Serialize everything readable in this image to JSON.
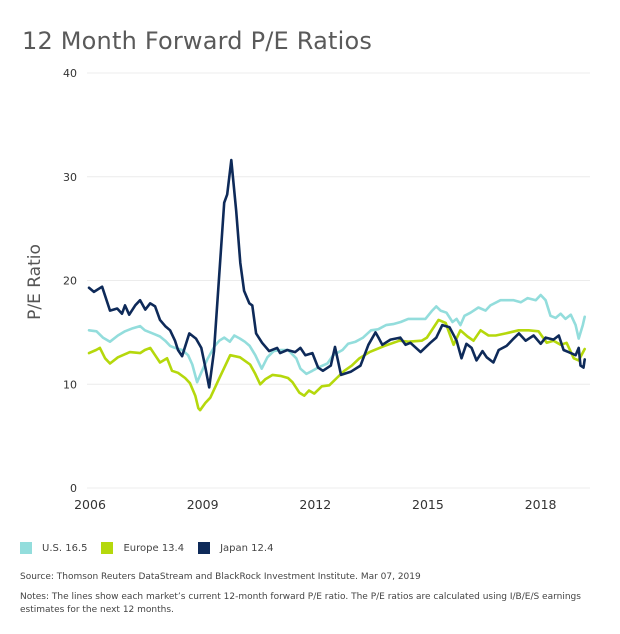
{
  "title": "12 Month Forward P/E Ratios",
  "legend": [
    {
      "label": "U.S. 16.5",
      "color": "#93dddc"
    },
    {
      "label": "Europe 13.4",
      "color": "#b5d80c"
    },
    {
      "label": "Japan 12.4",
      "color": "#0e2a59"
    }
  ],
  "source": "Source: Thomson Reuters DataStream and BlackRock Investment Institute. Mar 07, 2019",
  "notes": "Notes: The lines show each market’s current 12-month forward P/E ratio. The P/E ratios are calculated using I/B/E/S earnings estimates for the next 12 months.",
  "chart_data": {
    "type": "line",
    "title": "12 Month Forward P/E Ratios",
    "xlabel": "",
    "ylabel": "P/E Ratio",
    "xlim": [
      2006,
      2019.2
    ],
    "ylim": [
      0,
      40
    ],
    "yticks": [
      0,
      10,
      20,
      30,
      40
    ],
    "xticks": [
      2006,
      2009,
      2012,
      2015,
      2018
    ],
    "xtick_labels": [
      "2006",
      "2009",
      "2012",
      "2015",
      "2018"
    ],
    "ytick_labels": [
      "0",
      "10",
      "20",
      "30",
      "40"
    ],
    "grid": true,
    "legend_position": "bottom-left",
    "series": [
      {
        "name": "U.S.",
        "label": "U.S. 16.5",
        "color": "#93dddc",
        "points": [
          [
            2006.0,
            15.2
          ],
          [
            2006.2,
            15.1
          ],
          [
            2006.37,
            14.5
          ],
          [
            2006.56,
            14.1
          ],
          [
            2006.77,
            14.7
          ],
          [
            2006.96,
            15.1
          ],
          [
            2007.17,
            15.4
          ],
          [
            2007.36,
            15.6
          ],
          [
            2007.49,
            15.2
          ],
          [
            2007.63,
            15.0
          ],
          [
            2007.76,
            14.8
          ],
          [
            2007.89,
            14.6
          ],
          [
            2008.03,
            14.2
          ],
          [
            2008.16,
            13.7
          ],
          [
            2008.29,
            13.5
          ],
          [
            2008.48,
            13.3
          ],
          [
            2008.64,
            12.8
          ],
          [
            2008.75,
            11.9
          ],
          [
            2008.88,
            10.2
          ],
          [
            2009.0,
            11.2
          ],
          [
            2009.15,
            12.4
          ],
          [
            2009.35,
            13.7
          ],
          [
            2009.47,
            14.2
          ],
          [
            2009.6,
            14.5
          ],
          [
            2009.75,
            14.1
          ],
          [
            2009.87,
            14.7
          ],
          [
            2010.02,
            14.4
          ],
          [
            2010.15,
            14.1
          ],
          [
            2010.28,
            13.7
          ],
          [
            2010.43,
            12.8
          ],
          [
            2010.6,
            11.5
          ],
          [
            2010.75,
            12.6
          ],
          [
            2010.92,
            13.2
          ],
          [
            2011.1,
            13.3
          ],
          [
            2011.3,
            13.3
          ],
          [
            2011.52,
            12.5
          ],
          [
            2011.63,
            11.5
          ],
          [
            2011.79,
            11.0
          ],
          [
            2011.95,
            11.3
          ],
          [
            2012.1,
            11.6
          ],
          [
            2012.35,
            12.0
          ],
          [
            2012.5,
            12.8
          ],
          [
            2012.75,
            13.3
          ],
          [
            2012.9,
            13.9
          ],
          [
            2013.1,
            14.1
          ],
          [
            2013.3,
            14.5
          ],
          [
            2013.51,
            15.2
          ],
          [
            2013.7,
            15.3
          ],
          [
            2013.91,
            15.7
          ],
          [
            2014.1,
            15.8
          ],
          [
            2014.3,
            16.0
          ],
          [
            2014.5,
            16.3
          ],
          [
            2014.77,
            16.3
          ],
          [
            2014.96,
            16.3
          ],
          [
            2015.14,
            17.1
          ],
          [
            2015.25,
            17.5
          ],
          [
            2015.36,
            17.1
          ],
          [
            2015.52,
            16.9
          ],
          [
            2015.68,
            16.0
          ],
          [
            2015.79,
            16.3
          ],
          [
            2015.89,
            15.7
          ],
          [
            2016.0,
            16.6
          ],
          [
            2016.16,
            16.9
          ],
          [
            2016.37,
            17.4
          ],
          [
            2016.56,
            17.1
          ],
          [
            2016.69,
            17.6
          ],
          [
            2016.96,
            18.1
          ],
          [
            2017.1,
            18.1
          ],
          [
            2017.31,
            18.1
          ],
          [
            2017.5,
            17.9
          ],
          [
            2017.68,
            18.3
          ],
          [
            2017.9,
            18.1
          ],
          [
            2018.03,
            18.6
          ],
          [
            2018.16,
            18.1
          ],
          [
            2018.29,
            16.6
          ],
          [
            2018.43,
            16.4
          ],
          [
            2018.56,
            16.8
          ],
          [
            2018.69,
            16.3
          ],
          [
            2018.83,
            16.7
          ],
          [
            2018.96,
            15.7
          ],
          [
            2019.04,
            14.4
          ],
          [
            2019.15,
            15.7
          ],
          [
            2019.2,
            16.5
          ]
        ]
      },
      {
        "name": "Europe",
        "label": "Europe 13.4",
        "color": "#b5d80c",
        "points": [
          [
            2006.0,
            13.0
          ],
          [
            2006.19,
            13.3
          ],
          [
            2006.29,
            13.5
          ],
          [
            2006.43,
            12.5
          ],
          [
            2006.56,
            12.0
          ],
          [
            2006.77,
            12.6
          ],
          [
            2006.96,
            12.9
          ],
          [
            2007.09,
            13.1
          ],
          [
            2007.36,
            13.0
          ],
          [
            2007.49,
            13.3
          ],
          [
            2007.63,
            13.5
          ],
          [
            2007.76,
            12.8
          ],
          [
            2007.89,
            12.1
          ],
          [
            2008.08,
            12.5
          ],
          [
            2008.21,
            11.3
          ],
          [
            2008.37,
            11.1
          ],
          [
            2008.56,
            10.6
          ],
          [
            2008.69,
            10.1
          ],
          [
            2008.83,
            8.9
          ],
          [
            2008.91,
            7.7
          ],
          [
            2008.96,
            7.5
          ],
          [
            2009.1,
            8.2
          ],
          [
            2009.23,
            8.7
          ],
          [
            2009.5,
            10.8
          ],
          [
            2009.76,
            12.8
          ],
          [
            2010.02,
            12.6
          ],
          [
            2010.29,
            11.9
          ],
          [
            2010.43,
            11.0
          ],
          [
            2010.56,
            10.0
          ],
          [
            2010.7,
            10.5
          ],
          [
            2010.89,
            10.9
          ],
          [
            2011.1,
            10.8
          ],
          [
            2011.3,
            10.6
          ],
          [
            2011.42,
            10.2
          ],
          [
            2011.6,
            9.2
          ],
          [
            2011.73,
            8.9
          ],
          [
            2011.86,
            9.4
          ],
          [
            2012.0,
            9.1
          ],
          [
            2012.2,
            9.8
          ],
          [
            2012.4,
            9.9
          ],
          [
            2012.6,
            10.6
          ],
          [
            2012.8,
            11.3
          ],
          [
            2013.0,
            11.8
          ],
          [
            2013.2,
            12.5
          ],
          [
            2013.47,
            13.1
          ],
          [
            2013.87,
            13.7
          ],
          [
            2014.27,
            14.2
          ],
          [
            2014.5,
            14.1
          ],
          [
            2014.86,
            14.2
          ],
          [
            2015.0,
            14.5
          ],
          [
            2015.31,
            16.2
          ],
          [
            2015.5,
            15.9
          ],
          [
            2015.71,
            13.8
          ],
          [
            2015.89,
            15.2
          ],
          [
            2016.08,
            14.6
          ],
          [
            2016.24,
            14.2
          ],
          [
            2016.43,
            15.2
          ],
          [
            2016.64,
            14.7
          ],
          [
            2016.83,
            14.7
          ],
          [
            2017.1,
            14.9
          ],
          [
            2017.44,
            15.2
          ],
          [
            2017.71,
            15.2
          ],
          [
            2017.97,
            15.1
          ],
          [
            2018.19,
            14.0
          ],
          [
            2018.37,
            14.2
          ],
          [
            2018.56,
            13.8
          ],
          [
            2018.72,
            14.0
          ],
          [
            2018.91,
            12.5
          ],
          [
            2019.04,
            12.3
          ],
          [
            2019.2,
            13.4
          ]
        ]
      },
      {
        "name": "Japan",
        "label": "Japan 12.4",
        "color": "#0e2a59",
        "points": [
          [
            2006.0,
            19.3
          ],
          [
            2006.13,
            18.9
          ],
          [
            2006.35,
            19.4
          ],
          [
            2006.56,
            17.1
          ],
          [
            2006.75,
            17.3
          ],
          [
            2006.88,
            16.8
          ],
          [
            2006.96,
            17.6
          ],
          [
            2007.07,
            16.7
          ],
          [
            2007.23,
            17.6
          ],
          [
            2007.36,
            18.1
          ],
          [
            2007.5,
            17.2
          ],
          [
            2007.63,
            17.8
          ],
          [
            2007.76,
            17.5
          ],
          [
            2007.89,
            16.2
          ],
          [
            2008.03,
            15.6
          ],
          [
            2008.16,
            15.2
          ],
          [
            2008.29,
            14.2
          ],
          [
            2008.37,
            13.3
          ],
          [
            2008.48,
            12.7
          ],
          [
            2008.67,
            14.9
          ],
          [
            2008.85,
            14.4
          ],
          [
            2008.99,
            13.5
          ],
          [
            2009.1,
            11.6
          ],
          [
            2009.2,
            9.7
          ],
          [
            2009.33,
            13.2
          ],
          [
            2009.6,
            27.5
          ],
          [
            2009.68,
            28.3
          ],
          [
            2009.79,
            31.6
          ],
          [
            2009.92,
            26.7
          ],
          [
            2010.03,
            21.7
          ],
          [
            2010.13,
            19.0
          ],
          [
            2010.27,
            17.8
          ],
          [
            2010.35,
            17.6
          ],
          [
            2010.45,
            14.9
          ],
          [
            2010.61,
            14.0
          ],
          [
            2010.8,
            13.2
          ],
          [
            2011.01,
            13.5
          ],
          [
            2011.09,
            13.0
          ],
          [
            2011.28,
            13.3
          ],
          [
            2011.49,
            13.1
          ],
          [
            2011.63,
            13.5
          ],
          [
            2011.76,
            12.8
          ],
          [
            2011.95,
            13.0
          ],
          [
            2012.1,
            11.6
          ],
          [
            2012.23,
            11.3
          ],
          [
            2012.44,
            11.8
          ],
          [
            2012.55,
            13.6
          ],
          [
            2012.71,
            10.9
          ],
          [
            2012.97,
            11.2
          ],
          [
            2013.23,
            11.8
          ],
          [
            2013.44,
            13.8
          ],
          [
            2013.63,
            15.0
          ],
          [
            2013.71,
            14.5
          ],
          [
            2013.81,
            13.8
          ],
          [
            2014.03,
            14.3
          ],
          [
            2014.29,
            14.5
          ],
          [
            2014.43,
            13.8
          ],
          [
            2014.56,
            14.0
          ],
          [
            2014.83,
            13.1
          ],
          [
            2015.09,
            14.0
          ],
          [
            2015.25,
            14.5
          ],
          [
            2015.41,
            15.7
          ],
          [
            2015.6,
            15.5
          ],
          [
            2015.79,
            14.2
          ],
          [
            2015.92,
            12.5
          ],
          [
            2016.05,
            13.9
          ],
          [
            2016.19,
            13.5
          ],
          [
            2016.32,
            12.3
          ],
          [
            2016.48,
            13.2
          ],
          [
            2016.59,
            12.6
          ],
          [
            2016.77,
            12.1
          ],
          [
            2016.91,
            13.3
          ],
          [
            2017.12,
            13.7
          ],
          [
            2017.28,
            14.3
          ],
          [
            2017.45,
            14.9
          ],
          [
            2017.63,
            14.2
          ],
          [
            2017.84,
            14.7
          ],
          [
            2018.03,
            13.9
          ],
          [
            2018.16,
            14.5
          ],
          [
            2018.37,
            14.3
          ],
          [
            2018.51,
            14.7
          ],
          [
            2018.64,
            13.3
          ],
          [
            2018.77,
            13.1
          ],
          [
            2018.96,
            12.8
          ],
          [
            2019.04,
            13.5
          ],
          [
            2019.09,
            11.8
          ],
          [
            2019.17,
            11.6
          ],
          [
            2019.2,
            12.4
          ]
        ]
      }
    ]
  }
}
